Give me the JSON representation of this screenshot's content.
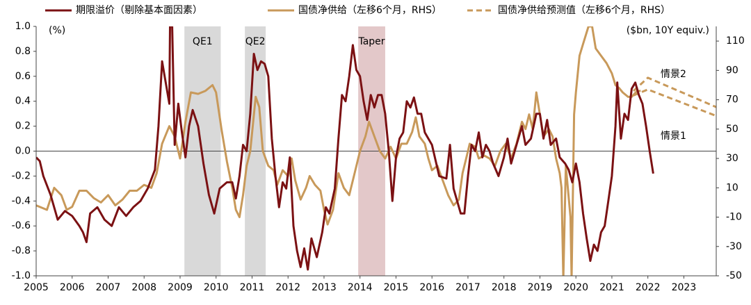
{
  "chart_data": {
    "type": "line",
    "axis_label_left": "(%)",
    "axis_label_right": "($bn, 10Y equiv.)",
    "xlim": [
      2005,
      2023.9
    ],
    "xticks": [
      2005,
      2006,
      2007,
      2008,
      2009,
      2010,
      2011,
      2012,
      2013,
      2014,
      2015,
      2016,
      2017,
      2018,
      2019,
      2020,
      2021,
      2022,
      2023
    ],
    "ylim": [
      -1,
      1
    ],
    "yticks": [
      {
        "value": -1,
        "label": "-1.0"
      },
      -0.8,
      -0.6,
      -0.4,
      -0.2,
      {
        "value": 0,
        "label": "0.0"
      },
      0.2,
      0.4,
      0.6,
      0.8,
      {
        "value": 1,
        "label": "1.0"
      }
    ],
    "y2lim": [
      -50,
      120
    ],
    "y2ticks": [
      -50,
      -30,
      -10,
      10,
      30,
      50,
      70,
      90,
      110
    ],
    "shaded": [
      {
        "label": "QE1",
        "start": 2009.12,
        "end": 2010.13,
        "color": "#d9d9d9"
      },
      {
        "label": "QE2",
        "start": 2010.8,
        "end": 2011.38,
        "color": "#d9d9d9"
      },
      {
        "label": "Taper",
        "start": 2013.95,
        "end": 2014.7,
        "color": "#e3c8c9"
      }
    ],
    "series": [
      {
        "name": "期限溢价（剔除基本面因素）",
        "color": "#7b1113",
        "axis": "y",
        "x": [
          2005.0,
          2005.1,
          2005.2,
          2005.4,
          2005.6,
          2005.8,
          2006.0,
          2006.2,
          2006.3,
          2006.4,
          2006.5,
          2006.7,
          2006.9,
          2007.1,
          2007.3,
          2007.5,
          2007.7,
          2007.9,
          2008.1,
          2008.3,
          2008.4,
          2008.5,
          2008.6,
          2008.7,
          2008.72,
          2008.78,
          2008.85,
          2008.95,
          2009.05,
          2009.15,
          2009.25,
          2009.35,
          2009.5,
          2009.65,
          2009.8,
          2009.95,
          2010.1,
          2010.3,
          2010.45,
          2010.55,
          2010.65,
          2010.75,
          2010.85,
          2010.95,
          2011.05,
          2011.15,
          2011.25,
          2011.35,
          2011.45,
          2011.55,
          2011.65,
          2011.75,
          2011.85,
          2011.95,
          2012.05,
          2012.15,
          2012.25,
          2012.35,
          2012.45,
          2012.55,
          2012.65,
          2012.8,
          2012.95,
          2013.05,
          2013.15,
          2013.3,
          2013.4,
          2013.5,
          2013.6,
          2013.7,
          2013.8,
          2013.9,
          2014.0,
          2014.1,
          2014.2,
          2014.3,
          2014.4,
          2014.5,
          2014.6,
          2014.7,
          2014.8,
          2014.9,
          2015.0,
          2015.1,
          2015.2,
          2015.3,
          2015.4,
          2015.5,
          2015.6,
          2015.7,
          2015.8,
          2015.9,
          2016.0,
          2016.2,
          2016.4,
          2016.5,
          2016.6,
          2016.8,
          2016.9,
          2017.0,
          2017.1,
          2017.2,
          2017.3,
          2017.4,
          2017.5,
          2017.6,
          2017.7,
          2017.85,
          2018.0,
          2018.1,
          2018.2,
          2018.35,
          2018.5,
          2018.6,
          2018.75,
          2018.9,
          2019.0,
          2019.1,
          2019.2,
          2019.3,
          2019.45,
          2019.55,
          2019.7,
          2019.8,
          2019.9,
          2020.0,
          2020.1,
          2020.2,
          2020.3,
          2020.4,
          2020.5,
          2020.6,
          2020.7,
          2020.8,
          2020.9,
          2021.0,
          2021.1,
          2021.15,
          2021.25,
          2021.35,
          2021.45,
          2021.55,
          2021.65,
          2021.75,
          2021.85,
          2021.95,
          2022.05,
          2022.15
        ],
        "values": [
          -0.05,
          -0.08,
          -0.2,
          -0.35,
          -0.55,
          -0.48,
          -0.52,
          -0.6,
          -0.65,
          -0.73,
          -0.5,
          -0.45,
          -0.55,
          -0.6,
          -0.45,
          -0.52,
          -0.45,
          -0.4,
          -0.3,
          -0.15,
          0.2,
          0.72,
          0.55,
          0.38,
          1.0,
          1.0,
          0.05,
          0.38,
          0.15,
          -0.05,
          0.2,
          0.33,
          0.2,
          -0.1,
          -0.35,
          -0.5,
          -0.3,
          -0.25,
          -0.25,
          -0.38,
          -0.2,
          0.05,
          0.0,
          0.3,
          0.78,
          0.65,
          0.72,
          0.7,
          0.6,
          0.1,
          -0.2,
          -0.45,
          -0.25,
          -0.3,
          -0.05,
          -0.6,
          -0.8,
          -0.93,
          -0.78,
          -0.95,
          -0.7,
          -0.85,
          -0.65,
          -0.45,
          -0.5,
          -0.3,
          0.1,
          0.45,
          0.4,
          0.6,
          0.85,
          0.65,
          0.6,
          0.4,
          0.25,
          0.45,
          0.35,
          0.45,
          0.45,
          0.3,
          0.0,
          -0.4,
          -0.05,
          0.1,
          0.15,
          0.4,
          0.35,
          0.43,
          0.3,
          0.3,
          0.15,
          0.1,
          0.05,
          -0.2,
          -0.22,
          0.05,
          -0.3,
          -0.5,
          -0.5,
          -0.2,
          0.05,
          0.0,
          0.15,
          -0.05,
          0.05,
          0.0,
          -0.1,
          -0.2,
          -0.05,
          0.1,
          -0.1,
          0.05,
          0.2,
          0.05,
          0.1,
          0.3,
          0.3,
          0.1,
          0.25,
          0.05,
          0.1,
          -0.05,
          -0.1,
          -0.15,
          -0.25,
          -0.1,
          -0.25,
          -0.5,
          -0.7,
          -0.88,
          -0.75,
          -0.8,
          -0.65,
          -0.6,
          -0.4,
          -0.2,
          0.2,
          0.55,
          0.1,
          0.3,
          0.25,
          0.5,
          0.55,
          0.45,
          0.38,
          0.2,
          0.0,
          -0.18
        ]
      },
      {
        "name": "国债净供给（左移6个月，RHS）",
        "color": "#c8995a",
        "axis": "y2",
        "x": [
          2005.0,
          2005.3,
          2005.5,
          2005.7,
          2005.85,
          2006.0,
          2006.2,
          2006.4,
          2006.6,
          2006.8,
          2007.0,
          2007.2,
          2007.4,
          2007.6,
          2007.8,
          2008.0,
          2008.2,
          2008.35,
          2008.5,
          2008.7,
          2008.85,
          2009.0,
          2009.15,
          2009.3,
          2009.5,
          2009.7,
          2009.9,
          2010.0,
          2010.15,
          2010.3,
          2010.45,
          2010.55,
          2010.65,
          2010.75,
          2010.85,
          2010.95,
          2011.1,
          2011.2,
          2011.3,
          2011.45,
          2011.6,
          2011.7,
          2011.85,
          2012.0,
          2012.1,
          2012.2,
          2012.35,
          2012.5,
          2012.6,
          2012.75,
          2012.9,
          2013.0,
          2013.1,
          2013.25,
          2013.4,
          2013.55,
          2013.7,
          2013.85,
          2014.0,
          2014.15,
          2014.25,
          2014.4,
          2014.55,
          2014.7,
          2014.85,
          2015.0,
          2015.15,
          2015.3,
          2015.45,
          2015.55,
          2015.65,
          2015.8,
          2015.9,
          2016.0,
          2016.15,
          2016.3,
          2016.45,
          2016.6,
          2016.75,
          2016.85,
          2016.95,
          2017.05,
          2017.2,
          2017.3,
          2017.45,
          2017.6,
          2017.75,
          2017.9,
          2018.05,
          2018.2,
          2018.35,
          2018.5,
          2018.6,
          2018.7,
          2018.8,
          2018.9,
          2019.0,
          2019.1,
          2019.25,
          2019.35,
          2019.45,
          2019.55,
          2019.6,
          2019.65,
          2019.72,
          2019.85,
          2019.88,
          2019.95,
          2020.0,
          2020.1,
          2020.2,
          2020.35,
          2020.45,
          2020.55,
          2020.7,
          2020.85,
          2021.0,
          2021.1,
          2021.2,
          2021.3,
          2021.45,
          2021.55,
          2021.7,
          2021.8
        ],
        "values": [
          -2,
          -5,
          10,
          5,
          -5,
          -3,
          8,
          8,
          3,
          0,
          5,
          -2,
          2,
          8,
          8,
          12,
          10,
          20,
          40,
          52,
          45,
          30,
          55,
          75,
          74,
          76,
          80,
          75,
          50,
          28,
          10,
          -5,
          -10,
          5,
          25,
          35,
          72,
          65,
          35,
          25,
          22,
          12,
          22,
          18,
          30,
          15,
          2,
          10,
          18,
          12,
          8,
          -5,
          -15,
          -5,
          20,
          10,
          5,
          20,
          35,
          45,
          55,
          45,
          35,
          30,
          38,
          30,
          40,
          40,
          48,
          58,
          45,
          40,
          30,
          22,
          25,
          15,
          5,
          -2,
          2,
          20,
          30,
          40,
          38,
          30,
          32,
          30,
          25,
          35,
          40,
          30,
          40,
          55,
          50,
          60,
          50,
          75,
          60,
          45,
          50,
          45,
          30,
          20,
          10,
          -52,
          25,
          -10,
          -52,
          60,
          75,
          100,
          108,
          120,
          120,
          105,
          100,
          95,
          88,
          80,
          78,
          75,
          72,
          72,
          76,
          76
        ]
      },
      {
        "name": "国债净供给预测值（左移6个月，RHS）",
        "color": "#c8995a",
        "axis": "y2",
        "dashed": true,
        "scenarios": [
          {
            "label": "情景2",
            "x": [
              2021.6,
              2022.0,
              2023.9
            ],
            "values": [
              76,
              85,
              65
            ]
          },
          {
            "label": "情景1",
            "x": [
              2021.6,
              2022.0,
              2023.9
            ],
            "values": [
              73,
              77,
              59
            ]
          }
        ]
      }
    ]
  }
}
